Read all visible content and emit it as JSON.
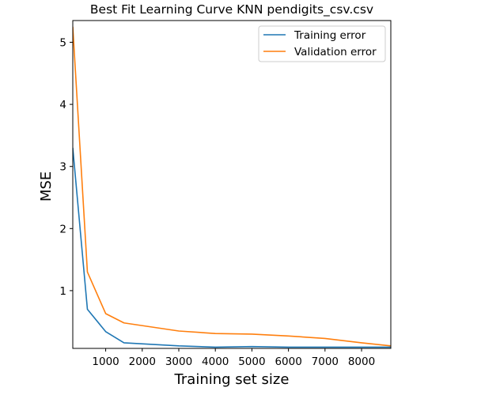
{
  "chart_data": {
    "type": "line",
    "title": "Best Fit Learning Curve KNN pendigits_csv.csv",
    "xlabel": "Training set size",
    "ylabel": "MSE",
    "xlim": [
      100,
      8800
    ],
    "ylim": [
      0.07,
      5.35
    ],
    "xticks": [
      1000,
      2000,
      3000,
      4000,
      5000,
      6000,
      7000,
      8000
    ],
    "yticks": [
      1,
      2,
      3,
      4,
      5
    ],
    "grid": false,
    "legend_position": "top-right",
    "x": [
      100,
      500,
      1000,
      1500,
      3000,
      4000,
      5000,
      6000,
      7000,
      8000,
      8800
    ],
    "series": [
      {
        "name": "Training error",
        "color": "#1f77b4",
        "values": [
          3.3,
          0.7,
          0.34,
          0.16,
          0.11,
          0.09,
          0.1,
          0.09,
          0.09,
          0.09,
          0.09
        ]
      },
      {
        "name": "Validation error",
        "color": "#ff7f0e",
        "values": [
          5.25,
          1.3,
          0.63,
          0.48,
          0.35,
          0.31,
          0.3,
          0.27,
          0.23,
          0.16,
          0.11
        ]
      }
    ]
  }
}
